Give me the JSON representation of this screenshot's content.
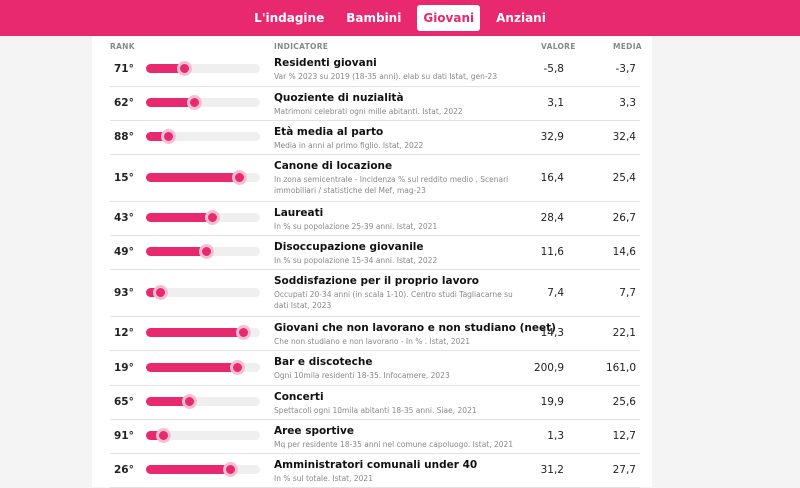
{
  "tabs": [
    {
      "label": "L'indagine",
      "active": false
    },
    {
      "label": "Bambini",
      "active": false
    },
    {
      "label": "Giovani",
      "active": true
    },
    {
      "label": "Anziani",
      "active": false
    }
  ],
  "colors": {
    "accent": "#e8286f"
  },
  "table": {
    "headers": {
      "rank": "RANK",
      "indicator": "INDICATORE",
      "value": "VALORE",
      "average": "MEDIA"
    },
    "rows": [
      {
        "rank": "71°",
        "score": 0.33,
        "title": "Residenti giovani",
        "subtitle": "Var % 2023 su 2019 (18-35 anni). elab su dati Istat, gen-23",
        "value": "-5,8",
        "average": "-3,7"
      },
      {
        "rank": "62°",
        "score": 0.42,
        "title": "Quoziente di nuzialità",
        "subtitle": "Matrimoni celebrati ogni mille abitanti. Istat, 2022",
        "value": "3,1",
        "average": "3,3"
      },
      {
        "rank": "88°",
        "score": 0.19,
        "title": "Età media al parto",
        "subtitle": "Media in anni al primo figlio. Istat, 2022",
        "value": "32,9",
        "average": "32,4"
      },
      {
        "rank": "15°",
        "score": 0.82,
        "title": "Canone di locazione",
        "subtitle": "In zona semicentrale - Incidenza % sul reddito medio . Scenari immobiliari / statistiche del Mef, mag-23",
        "value": "16,4",
        "average": "25,4"
      },
      {
        "rank": "43°",
        "score": 0.58,
        "title": "Laureati",
        "subtitle": "In % su popolazione 25-39 anni. Istat, 2021",
        "value": "28,4",
        "average": "26,7"
      },
      {
        "rank": "49°",
        "score": 0.53,
        "title": "Disoccupazione giovanile",
        "subtitle": "In % su popolazione 15-34 anni. Istat, 2022",
        "value": "11,6",
        "average": "14,6"
      },
      {
        "rank": "93°",
        "score": 0.12,
        "title": "Soddisfazione per il proprio lavoro",
        "subtitle": "Occupati 20-34 anni (in scala 1-10). Centro studi Tagliacarne su dati Istat, 2023",
        "value": "7,4",
        "average": "7,7"
      },
      {
        "rank": "12°",
        "score": 0.85,
        "title": "Giovani che non lavorano e non studiano (neet)",
        "subtitle": "Che non studiano e non lavorano - In % . Istat, 2021",
        "value": "14,3",
        "average": "22,1"
      },
      {
        "rank": "19°",
        "score": 0.8,
        "title": "Bar e discoteche",
        "subtitle": "Ogni 10mila residenti 18-35. Infocamere, 2023",
        "value": "200,9",
        "average": "161,0"
      },
      {
        "rank": "65°",
        "score": 0.38,
        "title": "Concerti",
        "subtitle": "Spettacoli ogni 10mila abitanti 18-35 anni. Siae, 2021",
        "value": "19,9",
        "average": "25,6"
      },
      {
        "rank": "91°",
        "score": 0.15,
        "title": "Aree sportive",
        "subtitle": "Mq per residente 18-35 anni nel comune capoluogo. Istat, 2021",
        "value": "1,3",
        "average": "12,7"
      },
      {
        "rank": "26°",
        "score": 0.74,
        "title": "Amministratori comunali under 40",
        "subtitle": "In % sul totale. Istat, 2021",
        "value": "31,2",
        "average": "27,7"
      }
    ]
  }
}
